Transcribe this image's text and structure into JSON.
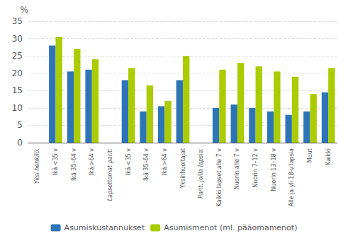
{
  "chart_data": {
    "type": "bar",
    "y_label": "%",
    "categories": [
      "Yksi henkilö:",
      "Ikä <35 v",
      "Ikä 35–64 v",
      "Ikä >64 v",
      "Lapsettomat parit:",
      "Ikä <35 v",
      "Ikä 35–64 v",
      "Ikä >64 v",
      "Yksinhuoltajat",
      "Parit, joilla lapsia:",
      "Kaikki lapset alle 7 v",
      "Nuorin alle 7 v",
      "Nuorin 7–12 v",
      "Nuorin 13–18 v",
      "Alle ja yli 18-v lapsia",
      "Muut",
      "Kaikki"
    ],
    "series": [
      {
        "name": "Asumiskustannukset",
        "color": "#2E75B6",
        "values": [
          null,
          28,
          20.5,
          21,
          null,
          18,
          9,
          10.5,
          18,
          null,
          10,
          11,
          10,
          9,
          8,
          9,
          14.5
        ]
      },
      {
        "name": "Asumismenot (ml. pääomamenot)",
        "color": "#AACC00",
        "values": [
          null,
          30.5,
          27,
          24,
          null,
          21.5,
          16.5,
          12,
          25,
          null,
          21,
          23,
          22,
          20.5,
          19,
          14,
          21.5
        ]
      }
    ],
    "ylim": [
      0,
      35
    ],
    "yticks": [
      0,
      5,
      10,
      15,
      20,
      25,
      30,
      35
    ],
    "grid": true,
    "legend": "bottom"
  }
}
